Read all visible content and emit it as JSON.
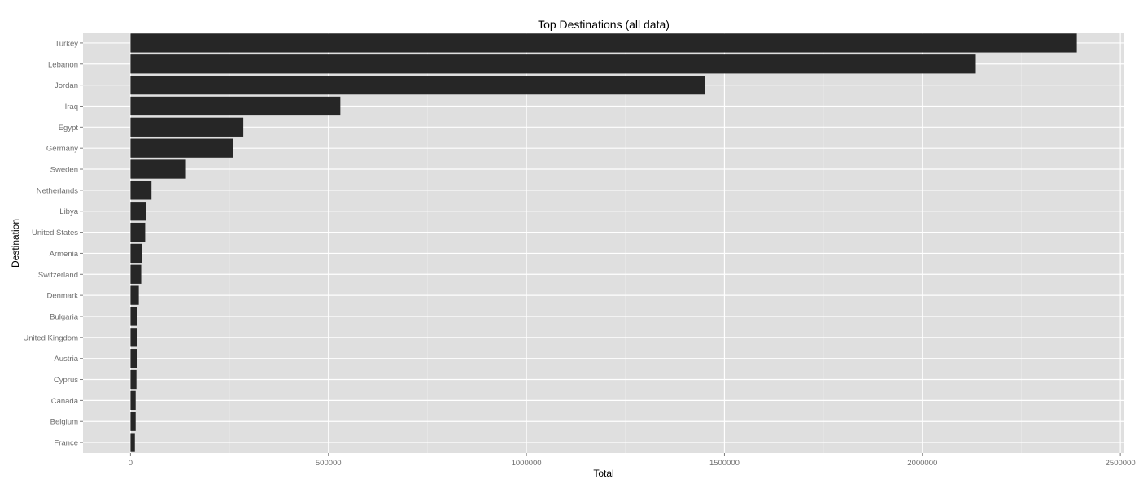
{
  "chart_data": {
    "type": "bar",
    "orientation": "horizontal",
    "title": "Top Destinations (all data)",
    "xlabel": "Total",
    "ylabel": "Destination",
    "categories": [
      "Turkey",
      "Lebanon",
      "Jordan",
      "Iraq",
      "Egypt",
      "Germany",
      "Sweden",
      "Netherlands",
      "Libya",
      "United States",
      "Armenia",
      "Switzerland",
      "Denmark",
      "Bulgaria",
      "United Kingdom",
      "Austria",
      "Cyprus",
      "Canada",
      "Belgium",
      "France"
    ],
    "values": [
      2390000,
      2135000,
      1450000,
      530000,
      285000,
      260000,
      140000,
      53000,
      40000,
      37000,
      28000,
      27000,
      21000,
      17000,
      17000,
      16000,
      15000,
      13000,
      13000,
      11000
    ],
    "xlim": [
      -120000,
      2510000
    ],
    "xticks": [
      0,
      500000,
      1000000,
      1500000,
      2000000,
      2500000
    ],
    "xtick_labels": [
      "0",
      "500000",
      "1000000",
      "1500000",
      "2000000",
      "2500000"
    ],
    "grid": true,
    "colors": {
      "bar": "#262626",
      "panel": "#dfdfdf",
      "grid": "#ffffff"
    }
  }
}
